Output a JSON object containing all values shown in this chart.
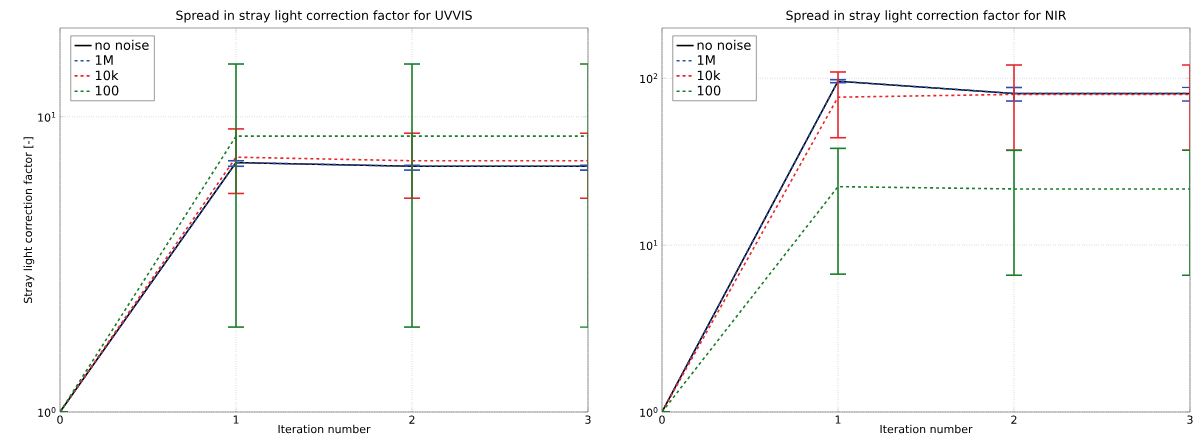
{
  "chart_data": [
    {
      "type": "line",
      "title": "Spread in stray light correction factor for UVVIS",
      "xlabel": "Iteration number",
      "ylabel": "Stray light correction factor [-]",
      "x": [
        0,
        1,
        2,
        3
      ],
      "xlim": [
        0,
        3
      ],
      "xticks": [
        0,
        1,
        2,
        3
      ],
      "ylim": [
        1,
        20
      ],
      "yticks": [
        {
          "value": 1,
          "label": "10$^{0}$"
        },
        {
          "value": 10,
          "label": "10$^{1}$"
        }
      ],
      "log": "y",
      "grid": true,
      "legend": "top left",
      "marker": "none",
      "series": [
        {
          "name": "no noise",
          "color": "#000000",
          "line_style": "solid",
          "values": [
            1,
            7.0,
            6.8,
            6.8
          ]
        },
        {
          "name": "1M",
          "color": "#2b4fb0",
          "line_style": "dashed",
          "values": [
            1,
            7.0,
            6.8,
            6.8
          ],
          "errors": [
            null,
            [
              6.8,
              7.1
            ],
            [
              6.6,
              6.85
            ],
            [
              6.6,
              6.85
            ]
          ]
        },
        {
          "name": "10k",
          "color": "#e8262b",
          "line_style": "dashed",
          "values": [
            1,
            7.3,
            7.1,
            7.1
          ],
          "errors": [
            null,
            [
              5.5,
              9.1
            ],
            [
              5.3,
              8.8
            ],
            [
              5.3,
              8.8
            ]
          ]
        },
        {
          "name": "100",
          "color": "#1a7d2a",
          "line_style": "dashed",
          "values": [
            1,
            8.6,
            8.6,
            8.6
          ],
          "errors": [
            null,
            [
              1.94,
              15.1
            ],
            [
              1.94,
              15.1
            ],
            [
              1.94,
              15.1
            ]
          ]
        }
      ]
    },
    {
      "type": "line",
      "title": "Spread in stray light correction factor for NIR",
      "xlabel": "Iteration number",
      "x": [
        0,
        1,
        2,
        3
      ],
      "xlim": [
        0,
        3
      ],
      "xticks": [
        0,
        1,
        2,
        3
      ],
      "ylim": [
        1,
        200
      ],
      "yticks": [
        {
          "value": 1,
          "label": "10$^{0}$"
        },
        {
          "value": 10,
          "label": "10$^{1}$"
        },
        {
          "value": 100,
          "label": "10$^{2}$"
        }
      ],
      "log": "y",
      "grid": true,
      "legend": "top left",
      "marker": "none",
      "series": [
        {
          "name": "no noise",
          "color": "#000000",
          "line_style": "solid",
          "values": [
            1,
            96,
            81,
            81
          ]
        },
        {
          "name": "1M",
          "color": "#2b4fb0",
          "line_style": "dashed",
          "values": [
            1,
            96,
            81,
            81
          ],
          "errors": [
            null,
            [
              94,
              98
            ],
            [
              73,
              88
            ],
            [
              73,
              88
            ]
          ]
        },
        {
          "name": "10k",
          "color": "#e8262b",
          "line_style": "dashed",
          "values": [
            1,
            77,
            80,
            80
          ],
          "errors": [
            null,
            [
              44,
              109
            ],
            [
              37,
              120
            ],
            [
              37,
              120
            ]
          ]
        },
        {
          "name": "100",
          "color": "#1a7d2a",
          "line_style": "dashed",
          "values": [
            1,
            22.4,
            21.7,
            21.7
          ],
          "errors": [
            null,
            [
              6.7,
              38
            ],
            [
              6.6,
              37
            ],
            [
              6.6,
              37
            ]
          ]
        }
      ]
    }
  ]
}
